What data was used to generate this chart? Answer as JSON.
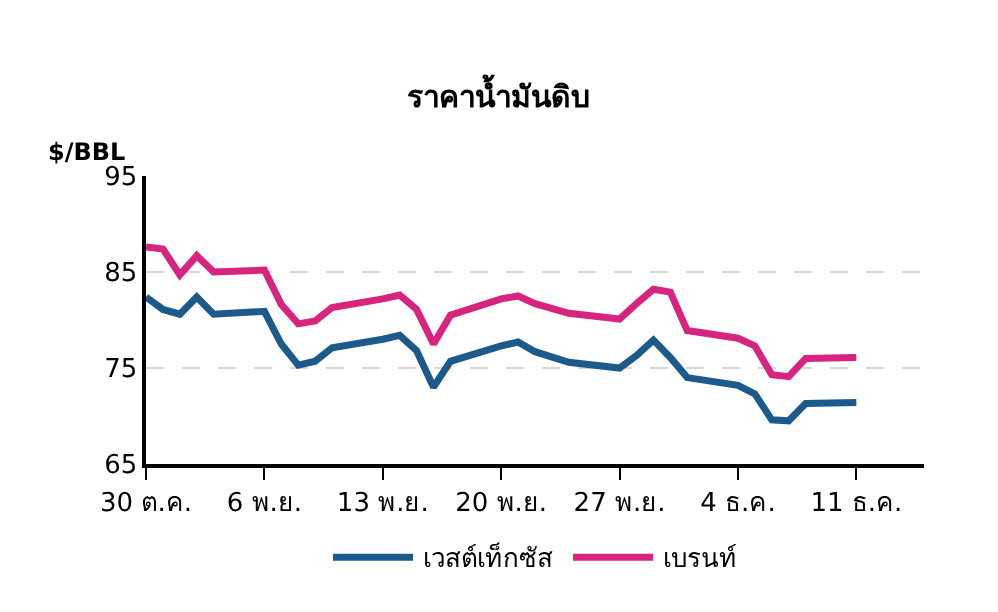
{
  "chart_data": {
    "type": "line",
    "title": "ราคาน้ำมันดิบ",
    "ylabel": "$/BBL",
    "x": [
      "--10-30",
      "--10-31",
      "--11-01",
      "--11-02",
      "--11-03",
      "--11-06",
      "--11-07",
      "--11-08",
      "--11-09",
      "--11-10",
      "--11-13",
      "--11-14",
      "--11-15",
      "--11-16",
      "--11-17",
      "--11-20",
      "--11-21",
      "--11-22",
      "--11-24",
      "--11-27",
      "--11-28",
      "--11-29",
      "--11-30",
      "--12-01",
      "--12-04",
      "--12-05",
      "--12-06",
      "--12-07",
      "--12-08",
      "--12-11"
    ],
    "series": [
      {
        "name": "เวสต์เท็กซัส",
        "color": "#1b5a8a",
        "values": [
          82.4,
          81.1,
          80.6,
          82.4,
          80.6,
          80.9,
          77.5,
          75.3,
          75.7,
          77.1,
          78.0,
          78.4,
          76.8,
          73.0,
          75.7,
          77.3,
          77.7,
          76.7,
          75.6,
          75.0,
          76.3,
          77.9,
          76.1,
          74.0,
          73.2,
          72.3,
          69.6,
          69.5,
          71.3,
          71.4
        ]
      },
      {
        "name": "เบรนท์",
        "color": "#d6247f",
        "values": [
          87.6,
          87.4,
          84.7,
          86.7,
          85.0,
          85.2,
          81.6,
          79.6,
          79.9,
          81.3,
          82.2,
          82.6,
          81.1,
          77.5,
          80.5,
          82.2,
          82.5,
          81.7,
          80.7,
          80.1,
          81.7,
          83.2,
          82.9,
          78.9,
          78.1,
          77.3,
          74.3,
          74.1,
          76.0,
          76.1
        ]
      }
    ],
    "xlim": [
      "--10-30",
      "--12-15"
    ],
    "xticks": [
      {
        "value": "--10-30",
        "label": "30 ต.ค."
      },
      {
        "value": "--11-06",
        "label": "6 พ.ย."
      },
      {
        "value": "--11-13",
        "label": "13 พ.ย."
      },
      {
        "value": "--11-20",
        "label": "20 พ.ย."
      },
      {
        "value": "--11-27",
        "label": "27 พ.ย."
      },
      {
        "value": "--12-04",
        "label": "4 ธ.ค."
      },
      {
        "value": "--12-11",
        "label": "11 ธ.ค."
      }
    ],
    "ylim": [
      65,
      95
    ],
    "yticks": [
      65,
      75,
      85,
      95
    ],
    "grid": "y",
    "legend": "bottom",
    "marker": "none",
    "line_style": "solid"
  }
}
